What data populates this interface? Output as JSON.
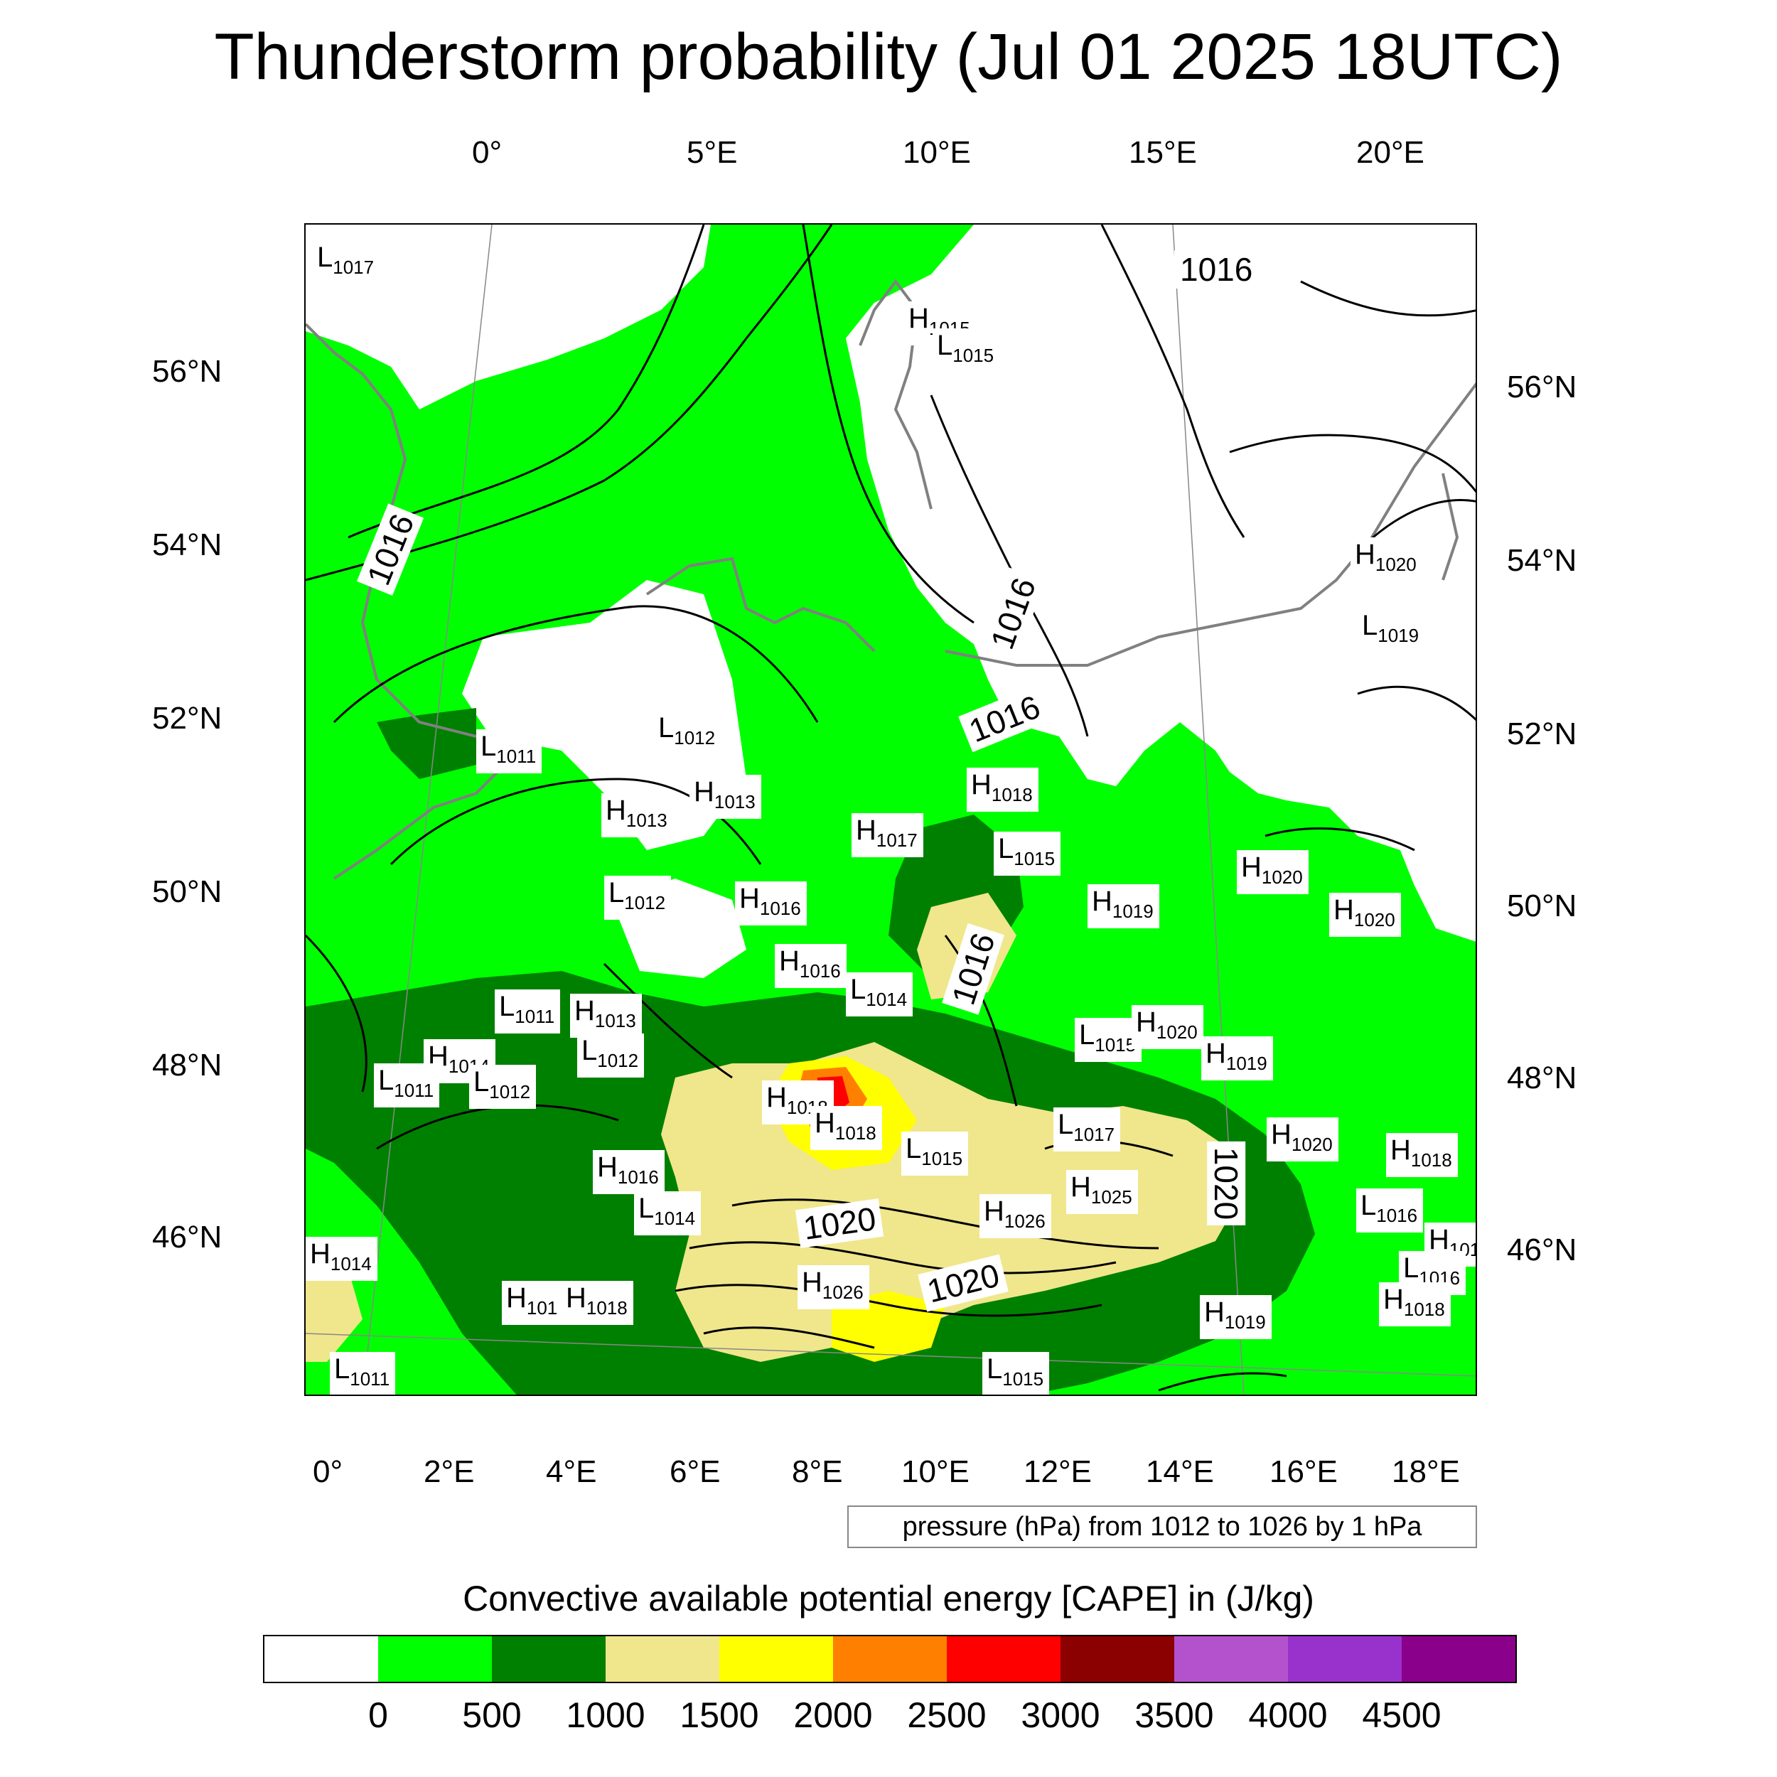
{
  "title": "Thunderstorm probability (Jul 01 2025 18UTC)",
  "top_lon_ticks": [
    "0°",
    "5°E",
    "10°E",
    "15°E",
    "20°E"
  ],
  "bottom_lon_ticks": [
    "0°",
    "2°E",
    "4°E",
    "6°E",
    "8°E",
    "10°E",
    "12°E",
    "14°E",
    "16°E",
    "18°E"
  ],
  "left_lat_ticks": [
    "56°N",
    "54°N",
    "52°N",
    "50°N",
    "48°N",
    "46°N"
  ],
  "right_lat_ticks": [
    "56°N",
    "54°N",
    "52°N",
    "50°N",
    "48°N",
    "46°N"
  ],
  "pressure_note": "pressure (hPa) from 1012 to 1026 by 1 hPa",
  "colorbar": {
    "title": "Convective available potential energy [CAPE] in (J/kg)",
    "colors": [
      "#ffffff",
      "#00ff00",
      "#008000",
      "#f0e68c",
      "#ffff00",
      "#ff8000",
      "#ff0000",
      "#8b0000",
      "#b452cd",
      "#9932cc",
      "#8b008b"
    ],
    "labels": [
      "0",
      "500",
      "1000",
      "1500",
      "2000",
      "2500",
      "3000",
      "3500",
      "4000",
      "4500"
    ]
  },
  "pressure_centers": [
    {
      "t": "L",
      "v": "1017"
    },
    {
      "t": "H",
      "v": "1015"
    },
    {
      "t": "L",
      "v": "1015"
    },
    {
      "t": "H",
      "v": "1020"
    },
    {
      "t": "L",
      "v": "1019"
    },
    {
      "t": "L",
      "v": "1011"
    },
    {
      "t": "L",
      "v": "1012"
    },
    {
      "t": "H",
      "v": "1013"
    },
    {
      "t": "H",
      "v": "1013"
    },
    {
      "t": "H",
      "v": "1018"
    },
    {
      "t": "H",
      "v": "1017"
    },
    {
      "t": "L",
      "v": "1015"
    },
    {
      "t": "L",
      "v": "1012"
    },
    {
      "t": "H",
      "v": "1016"
    },
    {
      "t": "H",
      "v": "1019"
    },
    {
      "t": "H",
      "v": "1020"
    },
    {
      "t": "H",
      "v": "1020"
    },
    {
      "t": "H",
      "v": "1016"
    },
    {
      "t": "L",
      "v": "1014"
    },
    {
      "t": "L",
      "v": "1011"
    },
    {
      "t": "H",
      "v": "1013"
    },
    {
      "t": "H",
      "v": "1014"
    },
    {
      "t": "L",
      "v": "1012"
    },
    {
      "t": "L",
      "v": "1011"
    },
    {
      "t": "L",
      "v": "1012"
    },
    {
      "t": "L",
      "v": "1015"
    },
    {
      "t": "H",
      "v": "1020"
    },
    {
      "t": "H",
      "v": "1019"
    },
    {
      "t": "H",
      "v": "1018"
    },
    {
      "t": "H",
      "v": "1018"
    },
    {
      "t": "L",
      "v": "1015"
    },
    {
      "t": "L",
      "v": "1017"
    },
    {
      "t": "H",
      "v": "1020"
    },
    {
      "t": "H",
      "v": "1018"
    },
    {
      "t": "H",
      "v": "1016"
    },
    {
      "t": "H",
      "v": "1025"
    },
    {
      "t": "L",
      "v": "1014"
    },
    {
      "t": "H",
      "v": "1026"
    },
    {
      "t": "L",
      "v": "1016"
    },
    {
      "t": "H",
      "v": "101"
    },
    {
      "t": "H",
      "v": "1014"
    },
    {
      "t": "H",
      "v": "1026"
    },
    {
      "t": "L",
      "v": "1016"
    },
    {
      "t": "H",
      "v": "101"
    },
    {
      "t": "H",
      "v": "1018"
    },
    {
      "t": "H",
      "v": "1018"
    },
    {
      "t": "H",
      "v": "1019"
    },
    {
      "t": "L",
      "v": "1011"
    },
    {
      "t": "L",
      "v": "1015"
    }
  ],
  "isobar_labels": [
    "1016",
    "1016",
    "1016",
    "1016",
    "1016",
    "1020",
    "1020",
    "1020"
  ]
}
